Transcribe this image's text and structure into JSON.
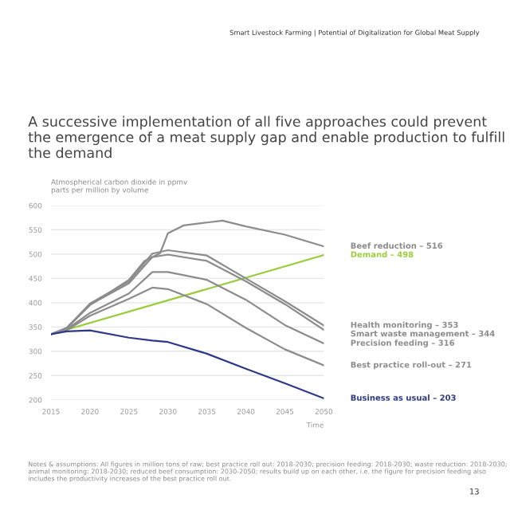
{
  "chart_data": {
    "type": "line",
    "title": "A successive implementation of all five approaches could prevent the emergence of a meat supply gap and enable production to fulfill the demand",
    "ylabel": "Atmospherical carbon dioxide in ppmv\nparts per million by volume",
    "xlabel": "Time",
    "annotations": [
      "Smart Livestock Farming | Potential of Digitalization for Global Meat Supply",
      "Notes & assumptions: All figures in million tons of raw; best practice roll out: 2018-2030; precision feeding: 2018-2030; waste reduction: 2018-2030; animal monitoring: 2018-2030; reduced beef consumption: 2030-2050; results build up on each other, i.e. the figure for precision feeding also includes the productivity increases of the best practice roll out.",
      "13"
    ],
    "x": [
      2015,
      2017,
      2020,
      2025,
      2028,
      2030,
      2035,
      2040,
      2045,
      2050
    ],
    "series": [
      {
        "name": "Beef reduction – 516",
        "color": "#8c8c8c",
        "x": [
          2015,
          2017,
          2020,
          2025,
          2027,
          2029,
          2030,
          2032,
          2035,
          2037,
          2040,
          2045,
          2050
        ],
        "values": [
          335,
          348,
          395,
          447,
          486,
          502,
          543,
          559,
          565,
          569,
          557,
          540,
          516
        ]
      },
      {
        "name": "Demand – 498",
        "color": "#9acd3c",
        "x": [
          2015,
          2050
        ],
        "values": [
          335,
          498
        ]
      },
      {
        "name": "Health monitoring – 353",
        "color": "#8c8c8c",
        "values": [
          335,
          348,
          398,
          444,
          501,
          508,
          497,
          450,
          403,
          353
        ]
      },
      {
        "name": "Smart waste management – 344",
        "color": "#8c8c8c",
        "values": [
          335,
          347,
          396,
          440,
          494,
          499,
          486,
          444,
          397,
          344
        ]
      },
      {
        "name": "Precision feeding – 316",
        "color": "#8c8c8c",
        "values": [
          335,
          345,
          379,
          419,
          463,
          463,
          447,
          406,
          354,
          316
        ]
      },
      {
        "name": "Best practice roll-out – 271",
        "color": "#8c8c8c",
        "values": [
          335,
          343,
          373,
          408,
          431,
          428,
          397,
          348,
          304,
          271
        ]
      },
      {
        "name": "Business as usual – 203",
        "color": "#2e3a87",
        "values": [
          335,
          341,
          343,
          328,
          322,
          319,
          295,
          264,
          234,
          203
        ]
      }
    ],
    "xlim": [
      2015,
      2050
    ],
    "xticks": [
      2015,
      2020,
      2025,
      2030,
      2035,
      2040,
      2045,
      2050
    ],
    "ylim": [
      200,
      600
    ],
    "yticks": [
      200,
      250,
      300,
      350,
      400,
      450,
      500,
      550,
      600
    ],
    "grid": "y",
    "marker": "none",
    "line_style": "solid"
  }
}
